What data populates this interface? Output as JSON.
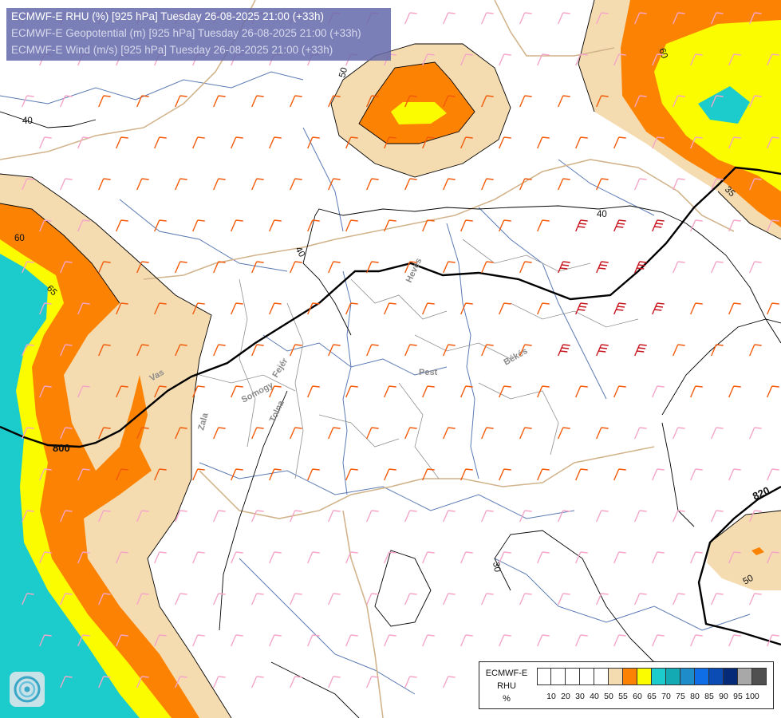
{
  "header": {
    "line1": "ECMWF-E RHU (%) [925 hPa] Tuesday 26-08-2025 21:00 (+33h)",
    "line2": "ECMWF-E Geopotential (m) [925 hPa] Tuesday 26-08-2025 21:00 (+33h)",
    "line3": "ECMWF-E Wind (m/s) [925 hPa] Tuesday 26-08-2025 21:00 (+33h)"
  },
  "legend": {
    "line1": "ECMWF-E",
    "line2": "RHU",
    "line3": "%",
    "colors": [
      "#ffffff",
      "#ffffff",
      "#ffffff",
      "#ffffff",
      "#ffffff",
      "#f5dcb0",
      "#fc8204",
      "#fcfc00",
      "#1ccccc",
      "#14aab4",
      "#1e8cc8",
      "#0f6ee6",
      "#0a4bb4",
      "#042a78",
      "#a8a8a8",
      "#505050"
    ],
    "ticks": [
      "10",
      "20",
      "30",
      "40",
      "50",
      "55",
      "60",
      "65",
      "70",
      "75",
      "80",
      "85",
      "90",
      "95",
      "100"
    ]
  },
  "contour_labels": {
    "rhu": [
      "40",
      "50",
      "40",
      "60",
      "65",
      "40",
      "60",
      "35",
      "30",
      "50"
    ],
    "geopotential": [
      "800",
      "820"
    ]
  },
  "place_labels": [
    "Vas",
    "Zala",
    "Somogy",
    "Fejér",
    "Tolna",
    "Pest",
    "Heves",
    "Békés"
  ],
  "colors": {
    "rhu_50": "#f5dcb0",
    "rhu_60": "#fc8204",
    "rhu_65": "#fcfc00",
    "rhu_70": "#1ccccc",
    "wind_high": "#f05a0a",
    "wind_low": "#f5a5c8",
    "wind_strong": "#c8141e",
    "river": "#5a7ab4",
    "border": "#d2b48c",
    "admin": "#909090"
  },
  "icons": [
    "logo-icon"
  ]
}
